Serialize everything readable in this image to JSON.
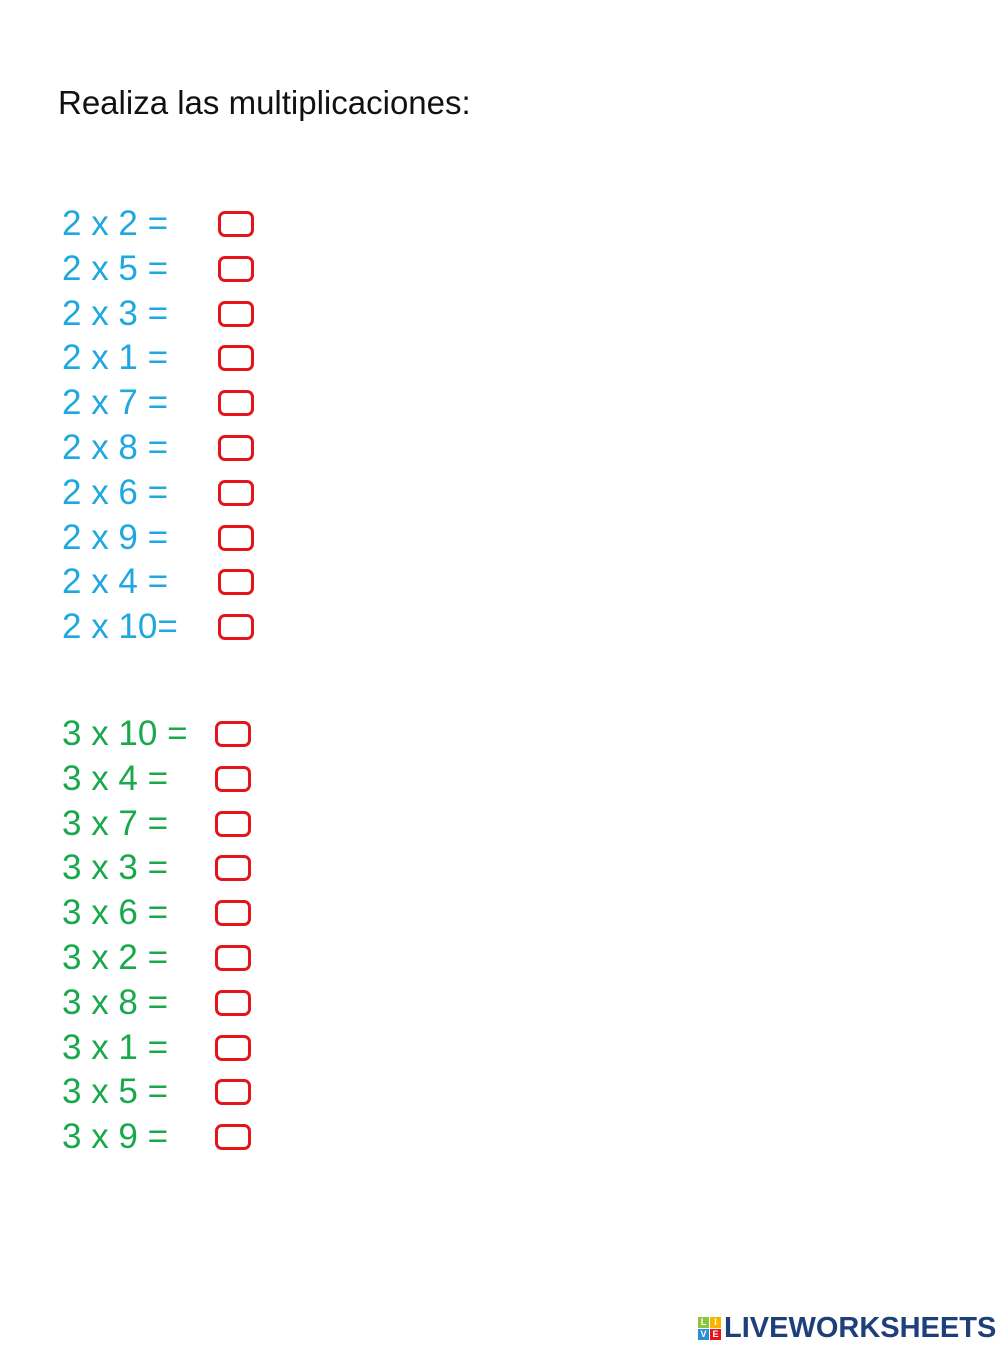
{
  "title": "Realiza las multiplicaciones:",
  "table_2": [
    "2 x 2 =",
    "2 x 5 =",
    "2 x 3 =",
    "2 x 1 =",
    "2 x 7 =",
    "2 x 8 =",
    "2 x 6 =",
    "2 x 9 =",
    "2 x 4 =",
    "2 x 10="
  ],
  "table_3": [
    "3 x 10 =",
    "3 x 4 =",
    "3 x 7 =",
    "3 x 3 =",
    "3 x 6 =",
    "3 x 2 =",
    "3 x 8 =",
    "3 x 1 =",
    "3 x 5 =",
    "3 x 9 ="
  ],
  "colors": {
    "table_2": "#1fa7e0",
    "table_3": "#19a94c",
    "answer_box": "#e4141b",
    "logo": "#1d3f7a"
  },
  "logo": {
    "text": "LIVEWORKSHEETS",
    "tiles": [
      "L",
      "I",
      "V",
      "E"
    ]
  }
}
